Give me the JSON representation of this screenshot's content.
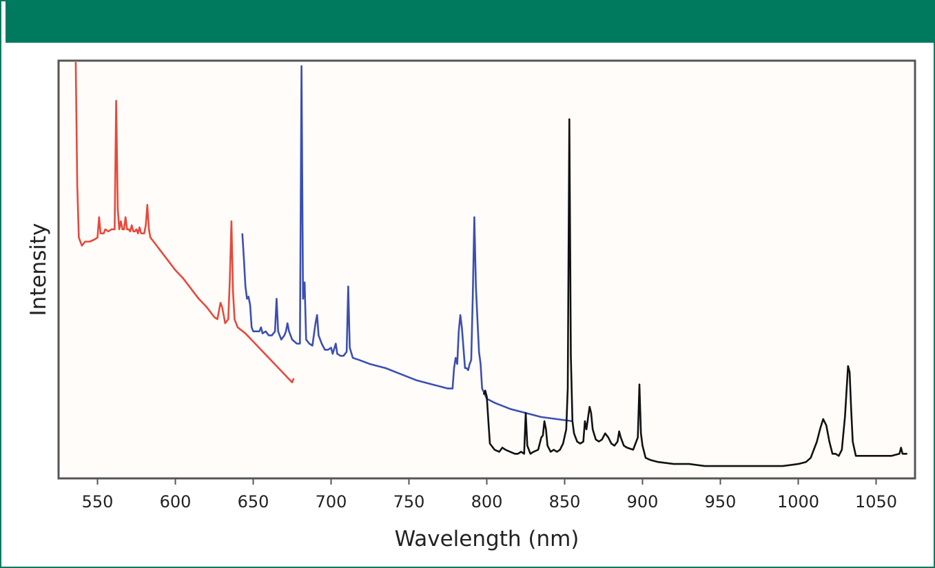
{
  "chart_data": {
    "type": "line",
    "title": "",
    "xlabel": "Wavelength (nm)",
    "ylabel": "Intensity",
    "xlim": [
      525,
      1075
    ],
    "ylim": [
      0,
      100
    ],
    "x_ticks": [
      550,
      600,
      650,
      700,
      750,
      800,
      850,
      900,
      950,
      1000,
      1050
    ],
    "x_tick_labels": [
      "550",
      "600",
      "650",
      "700",
      "750",
      "800",
      "850",
      "900",
      "950",
      "1000",
      "1050"
    ],
    "y_ticks_shown": false,
    "grid": false,
    "legend": "none",
    "series": [
      {
        "color": "#e8483a",
        "points": [
          [
            536,
            100
          ],
          [
            537,
            70
          ],
          [
            538,
            57
          ],
          [
            539,
            56
          ],
          [
            540,
            55
          ],
          [
            542,
            56
          ],
          [
            545,
            56
          ],
          [
            548,
            56.5
          ],
          [
            550,
            57
          ],
          [
            551,
            62
          ],
          [
            552,
            58
          ],
          [
            554,
            58
          ],
          [
            555,
            59
          ],
          [
            557,
            58.5
          ],
          [
            559,
            59
          ],
          [
            561,
            59
          ],
          [
            562,
            90.5
          ],
          [
            563,
            64
          ],
          [
            564,
            59
          ],
          [
            565,
            61
          ],
          [
            566,
            59
          ],
          [
            567,
            59
          ],
          [
            568,
            62
          ],
          [
            569,
            59
          ],
          [
            570,
            59
          ],
          [
            571,
            58.5
          ],
          [
            572,
            60
          ],
          [
            573,
            58.5
          ],
          [
            574,
            58.5
          ],
          [
            575,
            59
          ],
          [
            576,
            58
          ],
          [
            577,
            59.5
          ],
          [
            578,
            58
          ],
          [
            579,
            58
          ],
          [
            580,
            58
          ],
          [
            581,
            60
          ],
          [
            582,
            65
          ],
          [
            583,
            59
          ],
          [
            584,
            57
          ],
          [
            586,
            56
          ],
          [
            590,
            54
          ],
          [
            595,
            51.5
          ],
          [
            600,
            49
          ],
          [
            605,
            47
          ],
          [
            610,
            44.5
          ],
          [
            615,
            42
          ],
          [
            620,
            40
          ],
          [
            625,
            37.5
          ],
          [
            627,
            37
          ],
          [
            629,
            41
          ],
          [
            630,
            40
          ],
          [
            631,
            38
          ],
          [
            632,
            36
          ],
          [
            634,
            37
          ],
          [
            635,
            47
          ],
          [
            636,
            61
          ],
          [
            637,
            44
          ],
          [
            638,
            37
          ],
          [
            639,
            36
          ],
          [
            640,
            35
          ],
          [
            645,
            33.5
          ],
          [
            650,
            31.5
          ],
          [
            655,
            29.5
          ],
          [
            660,
            27.5
          ],
          [
            665,
            25.5
          ],
          [
            670,
            23.5
          ],
          [
            675,
            21.5
          ],
          [
            676,
            22.5
          ]
        ]
      },
      {
        "color": "#3a4fb2",
        "points": [
          [
            643,
            58
          ],
          [
            644,
            52
          ],
          [
            645,
            45
          ],
          [
            646,
            42
          ],
          [
            647,
            42.5
          ],
          [
            648,
            40.5
          ],
          [
            649,
            35
          ],
          [
            650,
            34
          ],
          [
            652,
            34
          ],
          [
            654,
            34
          ],
          [
            655,
            35
          ],
          [
            656,
            33.5
          ],
          [
            658,
            34
          ],
          [
            660,
            33
          ],
          [
            662,
            33
          ],
          [
            664,
            34
          ],
          [
            665,
            42
          ],
          [
            666,
            34
          ],
          [
            668,
            32
          ],
          [
            670,
            33
          ],
          [
            671,
            34
          ],
          [
            672,
            36
          ],
          [
            673,
            34
          ],
          [
            675,
            32
          ],
          [
            678,
            31
          ],
          [
            680,
            31
          ],
          [
            681,
            99
          ],
          [
            682,
            42
          ],
          [
            683,
            46
          ],
          [
            684,
            32
          ],
          [
            686,
            31
          ],
          [
            688,
            30.5
          ],
          [
            690,
            36
          ],
          [
            691,
            38
          ],
          [
            692,
            33
          ],
          [
            694,
            31
          ],
          [
            696,
            29.5
          ],
          [
            698,
            29.5
          ],
          [
            700,
            30
          ],
          [
            701,
            28.5
          ],
          [
            703,
            31
          ],
          [
            704,
            28.5
          ],
          [
            706,
            28
          ],
          [
            708,
            28
          ],
          [
            710,
            29
          ],
          [
            711,
            45
          ],
          [
            712,
            30
          ],
          [
            714,
            27.5
          ],
          [
            718,
            27
          ],
          [
            725,
            26
          ],
          [
            735,
            25
          ],
          [
            745,
            23.5
          ],
          [
            755,
            22
          ],
          [
            765,
            21
          ],
          [
            775,
            20
          ],
          [
            778,
            20
          ],
          [
            779,
            25
          ],
          [
            780,
            27.5
          ],
          [
            781,
            26
          ],
          [
            782,
            34
          ],
          [
            783,
            38
          ],
          [
            784,
            35
          ],
          [
            786,
            25
          ],
          [
            787,
            25
          ],
          [
            788,
            24.5
          ],
          [
            789,
            26
          ],
          [
            790,
            27
          ],
          [
            791,
            43
          ],
          [
            792,
            62
          ],
          [
            793,
            45
          ],
          [
            794,
            37
          ],
          [
            795,
            29
          ],
          [
            796,
            26
          ],
          [
            797,
            20
          ],
          [
            800,
            17.5
          ],
          [
            805,
            16.5
          ],
          [
            815,
            15
          ],
          [
            825,
            14
          ],
          [
            835,
            13
          ],
          [
            845,
            12.5
          ],
          [
            855,
            12
          ]
        ]
      },
      {
        "color": "#111111",
        "points": [
          [
            798,
            18.5
          ],
          [
            799,
            19.5
          ],
          [
            800,
            18
          ],
          [
            801,
            12
          ],
          [
            802,
            6.5
          ],
          [
            805,
            5
          ],
          [
            808,
            4.5
          ],
          [
            810,
            5.5
          ],
          [
            812,
            5
          ],
          [
            815,
            4.5
          ],
          [
            818,
            4
          ],
          [
            820,
            4
          ],
          [
            822,
            4.5
          ],
          [
            824,
            4
          ],
          [
            825,
            14
          ],
          [
            826,
            6
          ],
          [
            828,
            4
          ],
          [
            830,
            4.5
          ],
          [
            833,
            5
          ],
          [
            835,
            8
          ],
          [
            836,
            8.5
          ],
          [
            837,
            12
          ],
          [
            838,
            10
          ],
          [
            839,
            6
          ],
          [
            841,
            4.5
          ],
          [
            843,
            5
          ],
          [
            845,
            4.5
          ],
          [
            847,
            5
          ],
          [
            849,
            6.5
          ],
          [
            851,
            10
          ],
          [
            852,
            20
          ],
          [
            853,
            86
          ],
          [
            854,
            28
          ],
          [
            855,
            12
          ],
          [
            856,
            9
          ],
          [
            858,
            7
          ],
          [
            860,
            6.5
          ],
          [
            862,
            7
          ],
          [
            863,
            12
          ],
          [
            864,
            10
          ],
          [
            866,
            15.5
          ],
          [
            867,
            14
          ],
          [
            868,
            10
          ],
          [
            870,
            7.5
          ],
          [
            872,
            7
          ],
          [
            874,
            7.5
          ],
          [
            876,
            9
          ],
          [
            878,
            8
          ],
          [
            880,
            6.5
          ],
          [
            882,
            6
          ],
          [
            884,
            7
          ],
          [
            885,
            9.5
          ],
          [
            886,
            8
          ],
          [
            888,
            6
          ],
          [
            890,
            5.5
          ],
          [
            894,
            5
          ],
          [
            897,
            8
          ],
          [
            898,
            21
          ],
          [
            899,
            9
          ],
          [
            900,
            6
          ],
          [
            902,
            3
          ],
          [
            905,
            2.5
          ],
          [
            910,
            2
          ],
          [
            920,
            1.5
          ],
          [
            930,
            1.5
          ],
          [
            940,
            1
          ],
          [
            950,
            1
          ],
          [
            960,
            1
          ],
          [
            970,
            1
          ],
          [
            980,
            1
          ],
          [
            990,
            1
          ],
          [
            1000,
            1.5
          ],
          [
            1005,
            2
          ],
          [
            1008,
            3
          ],
          [
            1010,
            5
          ],
          [
            1012,
            7
          ],
          [
            1014,
            10
          ],
          [
            1016,
            12.5
          ],
          [
            1018,
            11
          ],
          [
            1020,
            7
          ],
          [
            1022,
            4
          ],
          [
            1024,
            4
          ],
          [
            1026,
            3.5
          ],
          [
            1028,
            5
          ],
          [
            1030,
            13
          ],
          [
            1032,
            25.5
          ],
          [
            1033,
            24
          ],
          [
            1034,
            15
          ],
          [
            1035,
            7
          ],
          [
            1037,
            3.5
          ],
          [
            1040,
            3.5
          ],
          [
            1045,
            3.5
          ],
          [
            1050,
            3.5
          ],
          [
            1055,
            3.5
          ],
          [
            1060,
            3.5
          ],
          [
            1065,
            4
          ],
          [
            1066,
            5.5
          ],
          [
            1067,
            4
          ],
          [
            1070,
            4
          ]
        ]
      }
    ]
  }
}
